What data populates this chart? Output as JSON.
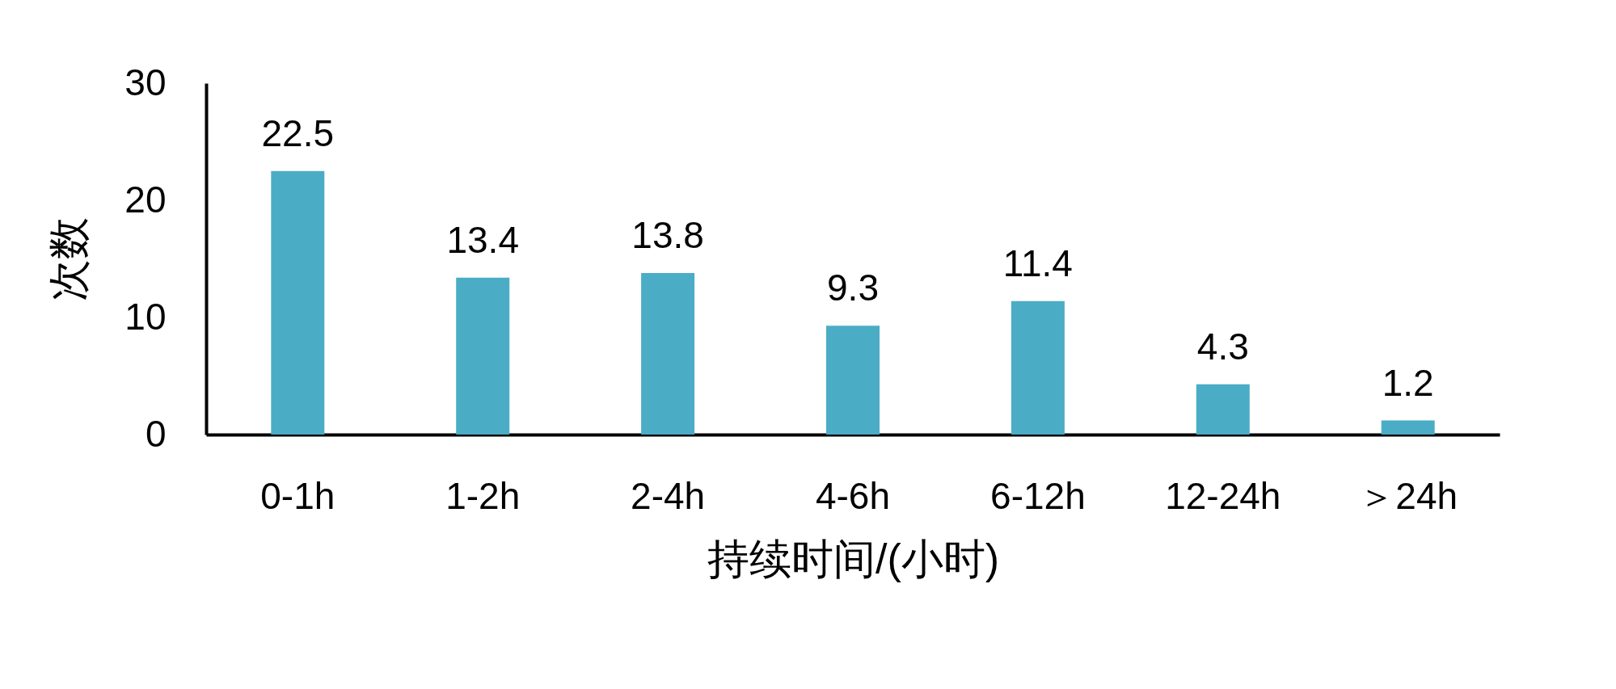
{
  "chart_data": {
    "type": "bar",
    "xlabel": "持续时间/(小时)",
    "ylabel": "次数",
    "categories": [
      "0-1h",
      "1-2h",
      "2-4h",
      "4-6h",
      "6-12h",
      "12-24h",
      "＞24h"
    ],
    "values": [
      22.5,
      13.4,
      13.8,
      9.3,
      11.4,
      4.3,
      1.2
    ],
    "color": "#4bacc6",
    "ylim": [
      0,
      30
    ],
    "yticks": [
      0,
      10,
      20,
      30
    ],
    "grid": false,
    "data_labels": true
  }
}
